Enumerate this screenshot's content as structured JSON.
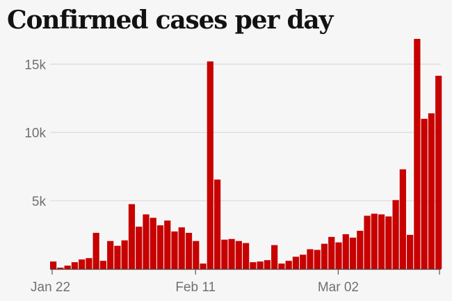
{
  "title": "Confirmed cases per day",
  "chart_data": {
    "type": "bar",
    "title": "Confirmed cases per day",
    "xlabel": "",
    "ylabel": "",
    "ylim": [
      0,
      17000
    ],
    "yticks": [
      5000,
      10000,
      15000
    ],
    "ytick_labels": [
      "5k",
      "10k",
      "15k"
    ],
    "xtick_labels": [
      {
        "label": "Jan 22",
        "index": 0
      },
      {
        "label": "Feb 11",
        "index": 20
      },
      {
        "label": "Mar 02",
        "index": 40
      }
    ],
    "grid": true,
    "colors": {
      "bar": "#c70000",
      "grid": "#dcdcdc",
      "axis": "#555555",
      "background": "#f6f6f6"
    },
    "categories": [
      "Jan 22",
      "Jan 23",
      "Jan 24",
      "Jan 25",
      "Jan 26",
      "Jan 27",
      "Jan 28",
      "Jan 29",
      "Jan 30",
      "Jan 31",
      "Feb 01",
      "Feb 02",
      "Feb 03",
      "Feb 04",
      "Feb 05",
      "Feb 06",
      "Feb 07",
      "Feb 08",
      "Feb 09",
      "Feb 10",
      "Feb 11",
      "Feb 12",
      "Feb 13",
      "Feb 14",
      "Feb 15",
      "Feb 16",
      "Feb 17",
      "Feb 18",
      "Feb 19",
      "Feb 20",
      "Feb 21",
      "Feb 22",
      "Feb 23",
      "Feb 24",
      "Feb 25",
      "Feb 26",
      "Feb 27",
      "Feb 28",
      "Feb 29",
      "Mar 01",
      "Mar 02",
      "Mar 03",
      "Mar 04",
      "Mar 05",
      "Mar 06",
      "Mar 07",
      "Mar 08",
      "Mar 09",
      "Mar 10",
      "Mar 11",
      "Mar 12",
      "Mar 13",
      "Mar 14",
      "Mar 15",
      "Mar 16",
      "Mar 17"
    ],
    "values": [
      550,
      100,
      250,
      500,
      700,
      800,
      2650,
      600,
      2050,
      1700,
      2100,
      4750,
      3100,
      4000,
      3750,
      3200,
      3550,
      2750,
      3050,
      2650,
      2050,
      400,
      15200,
      6550,
      2150,
      2200,
      2050,
      1900,
      500,
      550,
      650,
      1750,
      400,
      600,
      900,
      1050,
      1450,
      1400,
      1850,
      2350,
      1950,
      2550,
      2300,
      2800,
      3900,
      4050,
      4000,
      3850,
      5050,
      7300,
      2500,
      16850,
      11000,
      11400,
      14150,
      0
    ]
  }
}
